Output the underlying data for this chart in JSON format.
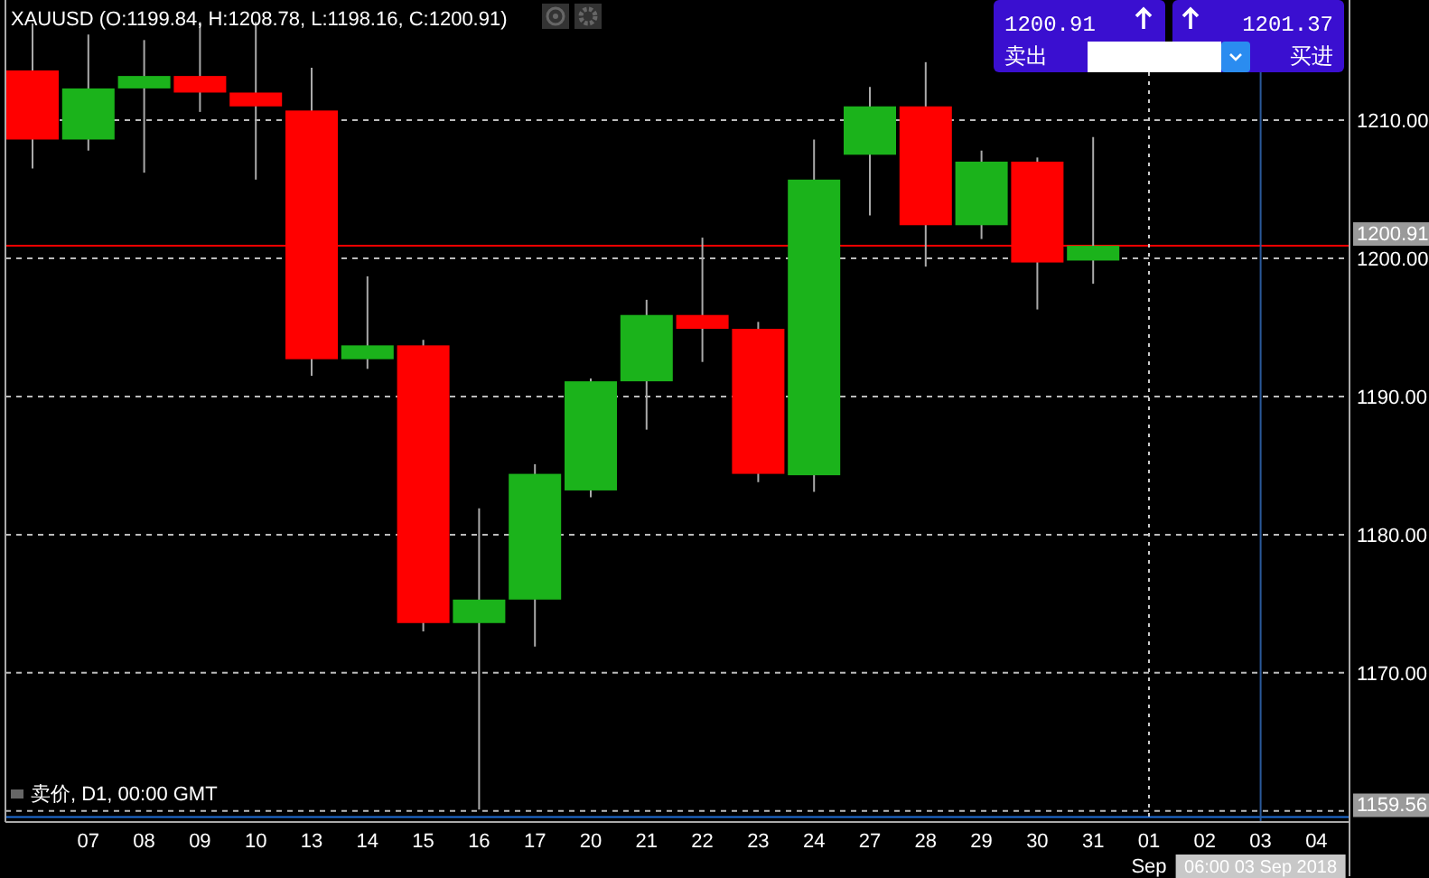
{
  "chart_data": {
    "type": "candlestick",
    "title": "XAUUSD (O:1199.84, H:1208.78, L:1198.16, C:1200.91)",
    "subtitle": "卖价, D1, 00:00 GMT",
    "categories": [
      null,
      "07",
      "08",
      "09",
      "10",
      "13",
      "14",
      "15",
      "16",
      "17",
      "20",
      "21",
      "22",
      "23",
      "24",
      "27",
      "28",
      "29",
      "30",
      "31",
      "01",
      "02",
      "03",
      "04"
    ],
    "ohlc": [
      [
        1213.6,
        1217.0,
        1206.5,
        1208.6
      ],
      [
        1208.6,
        1216.2,
        1207.8,
        1212.3
      ],
      [
        1212.3,
        1215.8,
        1206.2,
        1213.2
      ],
      [
        1213.2,
        1217.1,
        1210.6,
        1212.0
      ],
      [
        1212.0,
        1217.1,
        1205.7,
        1211.0
      ],
      [
        1210.7,
        1213.8,
        1191.5,
        1192.7
      ],
      [
        1192.7,
        1198.7,
        1192.0,
        1193.7
      ],
      [
        1193.7,
        1194.1,
        1173.0,
        1173.6
      ],
      [
        1173.6,
        1181.9,
        1160.1,
        1175.3
      ],
      [
        1175.3,
        1185.1,
        1171.9,
        1184.4
      ],
      [
        1183.2,
        1191.3,
        1182.7,
        1191.1
      ],
      [
        1191.1,
        1197.0,
        1187.6,
        1195.9
      ],
      [
        1195.9,
        1201.5,
        1192.5,
        1194.9
      ],
      [
        1194.9,
        1195.4,
        1183.8,
        1184.4
      ],
      [
        1184.3,
        1208.6,
        1183.1,
        1205.7
      ],
      [
        1207.5,
        1212.4,
        1203.1,
        1211.0
      ],
      [
        1211.0,
        1214.2,
        1199.4,
        1202.4
      ],
      [
        1202.4,
        1207.8,
        1201.4,
        1207.0
      ],
      [
        1207.0,
        1207.3,
        1196.3,
        1199.7
      ],
      [
        1199.84,
        1208.78,
        1198.16,
        1200.91
      ],
      null,
      null,
      null,
      null
    ],
    "colors": [
      "#ff0000",
      "#1bb31b",
      "#1bb31b",
      "#ff0000",
      "#ff0000",
      "#ff0000",
      "#1bb31b",
      "#ff0000",
      "#1bb31b",
      "#1bb31b",
      "#1bb31b",
      "#1bb31b",
      "#ff0000",
      "#ff0000",
      "#1bb31b",
      "#1bb31b",
      "#ff0000",
      "#1bb31b",
      "#ff0000",
      "#1bb31b",
      null,
      null,
      null,
      null
    ],
    "ylim": [
      1159.2,
      1218.7
    ],
    "yticks": [
      {
        "value": 1160,
        "label": null
      },
      {
        "value": 1170,
        "label": "1170.00"
      },
      {
        "value": 1180,
        "label": "1180.00"
      },
      {
        "value": 1190,
        "label": "1190.00"
      },
      {
        "value": 1200,
        "label": "1200.00"
      },
      {
        "value": 1210,
        "label": "1210.00"
      }
    ],
    "grid": "y",
    "ref_lines": [
      {
        "axis": "y",
        "value": 1200.91,
        "label": "1200.91",
        "color": "#ff0000",
        "line_style": "solid"
      },
      {
        "axis": "y",
        "value": 1159.56,
        "label": "1159.56",
        "color": "#1e6fd9",
        "line_style": "solid"
      },
      {
        "axis": "x",
        "value": "01",
        "label": null,
        "color": "#cccccc",
        "line_style": "dotted"
      },
      {
        "axis": "x",
        "value": "03",
        "label": "06:00 03 Sep 2018",
        "color": "#2a5a9a",
        "line_style": "solid"
      }
    ],
    "annotations": [
      "1200.91",
      "1201.37",
      "卖出",
      "买进",
      "Sep"
    ]
  }
}
